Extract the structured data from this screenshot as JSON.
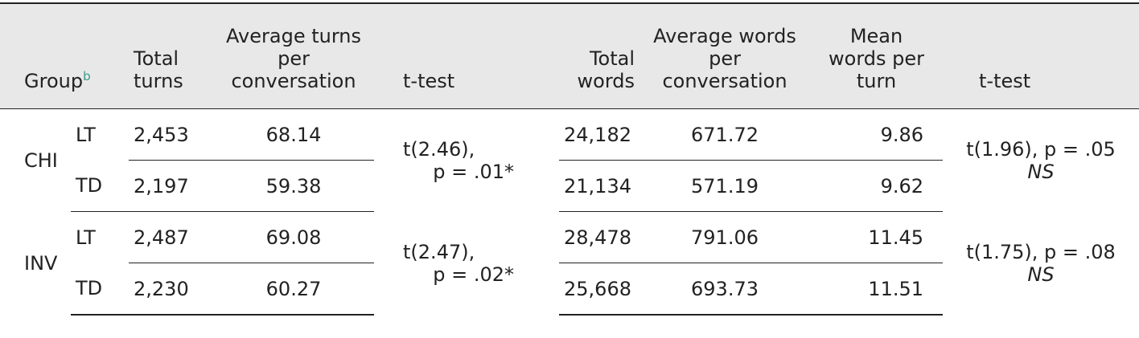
{
  "header": {
    "group": "Group",
    "group_note": "b",
    "columns": [
      "Total turns",
      "Average turns per conversation",
      "t-test",
      "Total words",
      "Average words per conversation",
      "Mean words per turn",
      "t-test"
    ]
  },
  "groups": [
    {
      "name": "CHI",
      "rows": [
        {
          "subgroup": "LT",
          "total_turns": "2,453",
          "avg_turns": "68.14",
          "total_words": "24,182",
          "avg_words": "671.72",
          "mean_words": "9.86"
        },
        {
          "subgroup": "TD",
          "total_turns": "2,197",
          "avg_turns": "59.38",
          "total_words": "21,134",
          "avg_words": "571.19",
          "mean_words": "9.62"
        }
      ],
      "turns_test": [
        "t(2.46),",
        "p = .01*"
      ],
      "words_test": "t(1.96), p = .05",
      "words_test_note": "NS"
    },
    {
      "name": "INV",
      "rows": [
        {
          "subgroup": "LT",
          "total_turns": "2,487",
          "avg_turns": "69.08",
          "total_words": "28,478",
          "avg_words": "791.06",
          "mean_words": "11.45"
        },
        {
          "subgroup": "TD",
          "total_turns": "2,230",
          "avg_turns": "60.27",
          "total_words": "25,668",
          "avg_words": "693.73",
          "mean_words": "11.51"
        }
      ],
      "turns_test": [
        "t(2.47),",
        "p = .02*"
      ],
      "words_test": "t(1.75), p = .08",
      "words_test_note": "NS"
    }
  ]
}
